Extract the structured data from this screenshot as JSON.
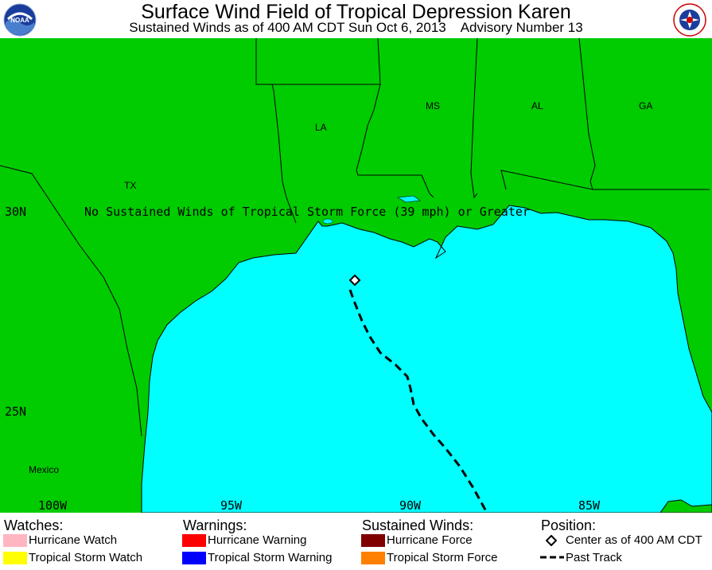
{
  "header": {
    "title": "Surface Wind Field of Tropical Depression Karen",
    "subtitle": "Sustained Winds as of 400 AM CDT Sun Oct 6, 2013    Advisory Number 13",
    "left_logo": "NOAA",
    "right_logo": "NATIONAL WEATHER SERVICE"
  },
  "map": {
    "notice": "No Sustained Winds of Tropical Storm Force (39 mph) or Greater",
    "states": {
      "tx": "TX",
      "la": "LA",
      "ms": "MS",
      "al": "AL",
      "ga": "GA"
    },
    "country": "Mexico",
    "lat_labels": {
      "lat30": "30N",
      "lat25": "25N"
    },
    "lon_labels": {
      "lon100": "100W",
      "lon95": "95W",
      "lon90": "90W",
      "lon85": "85W"
    },
    "colors": {
      "land": "#00cc00",
      "water": "#00ffff",
      "track": "#000000"
    }
  },
  "legend": {
    "watches": {
      "heading": "Watches:",
      "items": [
        {
          "label": "Hurricane Watch",
          "color": "#ffb6c1"
        },
        {
          "label": "Tropical Storm Watch",
          "color": "#ffff00"
        }
      ]
    },
    "warnings": {
      "heading": "Warnings:",
      "items": [
        {
          "label": "Hurricane Warning",
          "color": "#ff0000"
        },
        {
          "label": "Tropical Storm Warning",
          "color": "#0000ff"
        }
      ]
    },
    "winds": {
      "heading": "Sustained Winds:",
      "items": [
        {
          "label": "Hurricane Force",
          "color": "#800000"
        },
        {
          "label": "Tropical Storm Force",
          "color": "#ff8000"
        }
      ]
    },
    "position": {
      "heading": "Position:",
      "items": [
        {
          "label": "Center as of 400 AM CDT",
          "icon": "diamond-icon"
        },
        {
          "label": "Past Track",
          "icon": "dashed-line-icon"
        }
      ]
    }
  }
}
